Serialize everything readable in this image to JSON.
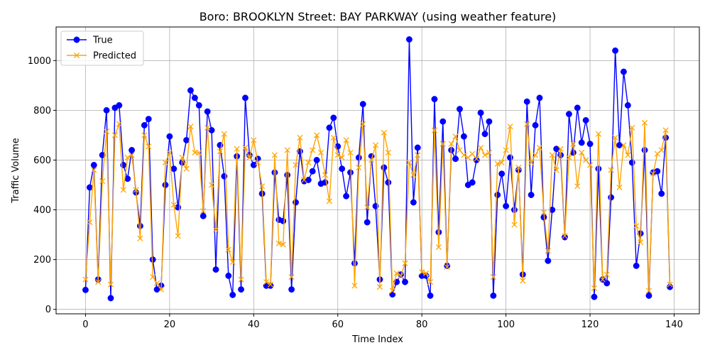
{
  "chart_data": {
    "type": "line",
    "title": "Boro: BROOKLYN Street: BAY PARKWAY (using weather feature)",
    "xlabel": "Time Index",
    "ylabel": "Traffic Volume",
    "xlim": [
      -7,
      146
    ],
    "ylim": [
      -18,
      1135
    ],
    "xticks": [
      0,
      20,
      40,
      60,
      80,
      100,
      120,
      140
    ],
    "yticks": [
      0,
      200,
      400,
      600,
      800,
      1000
    ],
    "grid": true,
    "legend_position": "top-left",
    "series": [
      {
        "name": "True",
        "color": "#0000ff",
        "marker": "circle",
        "values": [
          78,
          490,
          580,
          120,
          620,
          800,
          45,
          810,
          820,
          580,
          525,
          640,
          470,
          335,
          740,
          765,
          200,
          80,
          95,
          500,
          695,
          565,
          410,
          590,
          680,
          880,
          850,
          820,
          375,
          795,
          720,
          160,
          660,
          535,
          135,
          58,
          615,
          80,
          850,
          620,
          580,
          605,
          465,
          95,
          95,
          550,
          360,
          355,
          540,
          80,
          430,
          635,
          515,
          520,
          555,
          600,
          505,
          510,
          730,
          770,
          655,
          565,
          455,
          550,
          185,
          610,
          825,
          350,
          615,
          415,
          120,
          570,
          510,
          60,
          110,
          140,
          110,
          1085,
          430,
          650,
          135,
          135,
          55,
          845,
          310,
          755,
          175,
          640,
          605,
          805,
          695,
          500,
          510,
          600,
          790,
          705,
          755,
          55,
          460,
          545,
          415,
          610,
          400,
          560,
          140,
          835,
          460,
          740,
          850,
          370,
          195,
          400,
          645,
          620,
          290,
          785,
          630,
          810,
          670,
          760,
          665,
          50,
          565,
          120,
          105,
          450,
          1040,
          660,
          955,
          820,
          590,
          175,
          305,
          640,
          55,
          550,
          555,
          465,
          690,
          90
        ]
      },
      {
        "name": "Predicted",
        "color": "#ffa500",
        "marker": "x",
        "values": [
          120,
          350,
          560,
          110,
          515,
          715,
          100,
          700,
          745,
          480,
          610,
          620,
          480,
          285,
          700,
          655,
          130,
          105,
          80,
          590,
          630,
          420,
          295,
          610,
          565,
          735,
          630,
          630,
          395,
          730,
          500,
          320,
          635,
          705,
          240,
          190,
          645,
          120,
          650,
          610,
          680,
          590,
          495,
          110,
          100,
          620,
          265,
          260,
          640,
          130,
          580,
          690,
          520,
          590,
          640,
          700,
          630,
          540,
          435,
          690,
          620,
          610,
          680,
          630,
          95,
          570,
          745,
          410,
          600,
          660,
          90,
          710,
          630,
          75,
          145,
          135,
          185,
          590,
          540,
          620,
          150,
          145,
          110,
          720,
          250,
          665,
          170,
          665,
          695,
          640,
          620,
          610,
          625,
          605,
          650,
          620,
          630,
          130,
          585,
          590,
          640,
          735,
          340,
          570,
          115,
          745,
          590,
          620,
          650,
          390,
          235,
          620,
          560,
          645,
          295,
          610,
          665,
          495,
          630,
          600,
          580,
          85,
          705,
          120,
          140,
          560,
          690,
          490,
          660,
          620,
          730,
          335,
          270,
          750,
          75,
          545,
          625,
          640,
          720,
          100
        ]
      }
    ]
  }
}
